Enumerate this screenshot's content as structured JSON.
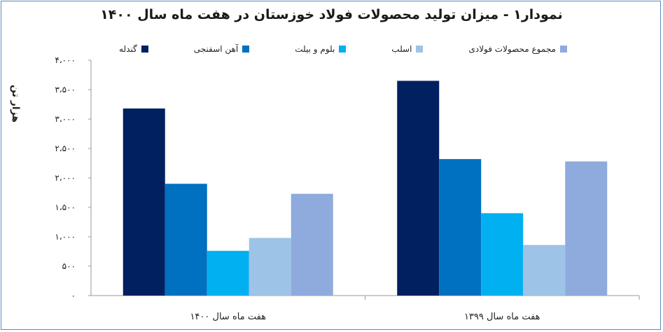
{
  "chart_data": {
    "type": "bar",
    "title": "نمودار۱ - میزان تولید محصولات فولاد خوزستان در هفت ماه سال ۱۴۰۰",
    "ylabel": "هزار تن",
    "xlabel": "",
    "ylim": [
      0,
      4000
    ],
    "yticks": [
      0,
      500,
      1000,
      1500,
      2000,
      2500,
      3000,
      3500,
      4000
    ],
    "ytick_labels": [
      "۰",
      "۵۰۰",
      "۱،۰۰۰",
      "۱،۵۰۰",
      "۲،۰۰۰",
      "۲،۵۰۰",
      "۳،۰۰۰",
      "۳،۵۰۰",
      "۴،۰۰۰"
    ],
    "categories": [
      "هفت ماه سال ۱۴۰۰",
      "هفت ماه سال ۱۳۹۹"
    ],
    "series": [
      {
        "name": "گندله",
        "color": "#002060",
        "values": [
          3180,
          3650
        ]
      },
      {
        "name": "آهن اسفنجی",
        "color": "#0070c0",
        "values": [
          1900,
          2320
        ]
      },
      {
        "name": "بلوم و بیلت",
        "color": "#00b0f0",
        "values": [
          760,
          1400
        ]
      },
      {
        "name": "اسلب",
        "color": "#9dc3e6",
        "values": [
          980,
          860
        ]
      },
      {
        "name": "مجموع محصولات فولادی",
        "color": "#8faadc",
        "values": [
          1730,
          2280
        ]
      }
    ],
    "legend_position": "top",
    "grid": false
  }
}
